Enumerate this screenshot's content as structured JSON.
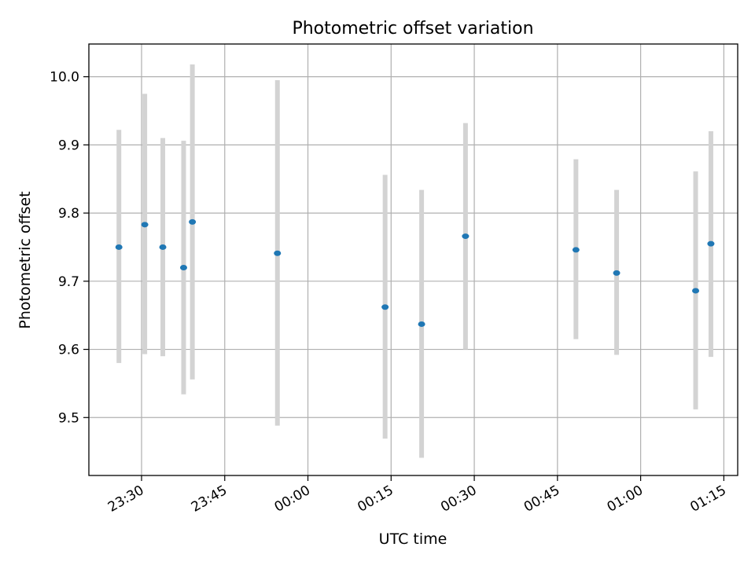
{
  "chart_data": {
    "type": "scatter",
    "title": "Photometric offset variation",
    "xlabel": "UTC time",
    "ylabel": "Photometric offset",
    "grid": true,
    "colors": {
      "point": "#1f77b4",
      "error_bar": "#d3d3d3",
      "grid": "#b0b0b0"
    },
    "xlim": [
      "23:20:30",
      "01:17:30"
    ],
    "ylim": [
      9.415,
      10.048
    ],
    "x_ticks": [
      "23:30",
      "23:45",
      "00:00",
      "00:15",
      "00:30",
      "00:45",
      "01:00",
      "01:15"
    ],
    "y_ticks": [
      9.5,
      9.6,
      9.7,
      9.8,
      9.9,
      10.0
    ],
    "y_tick_labels": [
      "9.5",
      "9.6",
      "9.7",
      "9.8",
      "9.9",
      "10.0"
    ],
    "series": [
      {
        "points": [
          {
            "t": "23:25:55",
            "y": 9.75,
            "lo": 9.58,
            "hi": 9.922
          },
          {
            "t": "23:30:35",
            "y": 9.783,
            "lo": 9.593,
            "hi": 9.975
          },
          {
            "t": "23:33:50",
            "y": 9.75,
            "lo": 9.59,
            "hi": 9.91
          },
          {
            "t": "23:37:35",
            "y": 9.72,
            "lo": 9.534,
            "hi": 9.906
          },
          {
            "t": "23:39:10",
            "y": 9.787,
            "lo": 9.556,
            "hi": 10.018
          },
          {
            "t": "23:54:30",
            "y": 9.741,
            "lo": 9.488,
            "hi": 9.995
          },
          {
            "t": "00:13:55",
            "y": 9.662,
            "lo": 9.469,
            "hi": 9.856
          },
          {
            "t": "00:20:30",
            "y": 9.637,
            "lo": 9.441,
            "hi": 9.834
          },
          {
            "t": "00:28:25",
            "y": 9.766,
            "lo": 9.6,
            "hi": 9.932
          },
          {
            "t": "00:48:20",
            "y": 9.746,
            "lo": 9.615,
            "hi": 9.879
          },
          {
            "t": "00:55:40",
            "y": 9.712,
            "lo": 9.592,
            "hi": 9.834
          },
          {
            "t": "01:09:55",
            "y": 9.686,
            "lo": 9.512,
            "hi": 9.861
          },
          {
            "t": "01:12:40",
            "y": 9.755,
            "lo": 9.589,
            "hi": 9.92
          }
        ]
      }
    ]
  }
}
